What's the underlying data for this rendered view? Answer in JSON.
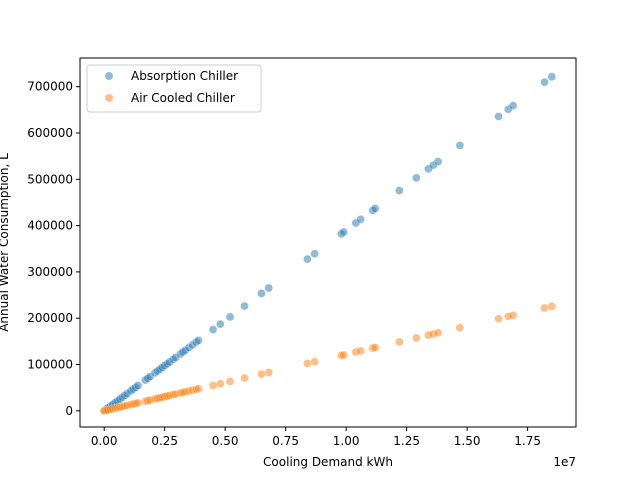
{
  "chart_data": {
    "type": "scatter",
    "title": "",
    "xlabel": "Cooling Demand kWh",
    "ylabel": "Annual Water Consumption, L",
    "x_offset_label": "1e7",
    "xlim": [
      -1000000,
      19500000
    ],
    "ylim": [
      -35000,
      762000
    ],
    "x_ticks": [
      0,
      2500000,
      5000000,
      7500000,
      10000000,
      12500000,
      15000000,
      17500000
    ],
    "x_tick_labels": [
      "0.00",
      "0.25",
      "0.50",
      "0.75",
      "1.00",
      "1.25",
      "1.50",
      "1.75"
    ],
    "y_ticks": [
      0,
      100000,
      200000,
      300000,
      400000,
      500000,
      600000,
      700000
    ],
    "y_tick_labels": [
      "0",
      "100000",
      "200000",
      "300000",
      "400000",
      "500000",
      "600000",
      "700000"
    ],
    "grid": false,
    "legend_position": "top-left",
    "series": [
      {
        "name": "Absorption Chiller",
        "color": "#1f77b4",
        "ratio": 0.039,
        "x": [
          0,
          50000,
          100000,
          150000,
          250000,
          350000,
          450000,
          550000,
          650000,
          750000,
          850000,
          950000,
          1100000,
          1200000,
          1300000,
          1400000,
          1700000,
          1800000,
          1900000,
          2100000,
          2200000,
          2300000,
          2400000,
          2500000,
          2600000,
          2700000,
          2850000,
          2950000,
          3150000,
          3250000,
          3350000,
          3500000,
          3650000,
          3800000,
          3900000,
          4500000,
          4800000,
          5200000,
          5800000,
          6500000,
          6800000,
          8400000,
          8700000,
          9800000,
          9900000,
          10400000,
          10600000,
          11100000,
          11200000,
          12200000,
          12900000,
          13400000,
          13600000,
          13800000,
          14700000,
          16300000,
          16700000,
          16900000,
          18200000,
          18500000
        ],
        "y": [
          0,
          1950,
          3900,
          5850,
          9750,
          13650,
          17550,
          21450,
          25350,
          29250,
          33150,
          37050,
          42900,
          46800,
          50700,
          54600,
          66300,
          70200,
          74100,
          81900,
          85800,
          89700,
          93600,
          97500,
          101400,
          105300,
          111150,
          115050,
          122850,
          126750,
          130650,
          136500,
          142350,
          148200,
          152100,
          175500,
          187200,
          202800,
          226200,
          253500,
          265200,
          327600,
          339300,
          382200,
          386100,
          405600,
          413400,
          432900,
          436800,
          475800,
          503100,
          522600,
          530400,
          538200,
          573300,
          635700,
          651300,
          659100,
          709800,
          721500
        ]
      },
      {
        "name": "Air Cooled Chiller",
        "color": "#ff7f0e",
        "ratio": 0.0122,
        "x": [
          0,
          50000,
          100000,
          150000,
          250000,
          350000,
          450000,
          550000,
          650000,
          750000,
          850000,
          950000,
          1100000,
          1200000,
          1300000,
          1400000,
          1700000,
          1800000,
          1900000,
          2100000,
          2200000,
          2300000,
          2400000,
          2500000,
          2600000,
          2700000,
          2850000,
          2950000,
          3150000,
          3250000,
          3350000,
          3500000,
          3650000,
          3800000,
          3900000,
          4500000,
          4800000,
          5200000,
          5800000,
          6500000,
          6800000,
          8400000,
          8700000,
          9800000,
          9900000,
          10400000,
          10600000,
          11100000,
          11200000,
          12200000,
          12900000,
          13400000,
          13600000,
          13800000,
          14700000,
          16300000,
          16700000,
          16900000,
          18200000,
          18500000
        ],
        "y": [
          0,
          610,
          1220,
          1830,
          3050,
          4270,
          5490,
          6710,
          7930,
          9150,
          10370,
          11590,
          13420,
          14640,
          15860,
          17080,
          20740,
          21960,
          23180,
          25620,
          26840,
          28060,
          29280,
          30500,
          31720,
          32940,
          34770,
          35990,
          38430,
          39650,
          40870,
          42700,
          44530,
          46360,
          47580,
          54900,
          58560,
          63440,
          70760,
          79300,
          82960,
          102480,
          106140,
          119560,
          120780,
          126880,
          129320,
          135420,
          136640,
          148840,
          157380,
          163480,
          165920,
          168360,
          179340,
          198860,
          203740,
          206180,
          222040,
          225700
        ]
      }
    ]
  }
}
